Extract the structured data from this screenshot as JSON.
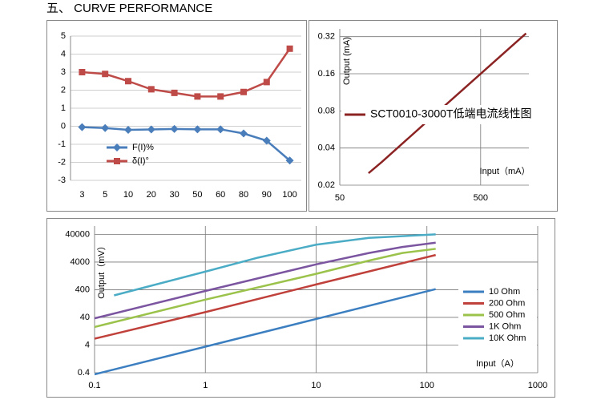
{
  "header": {
    "title": "五、 CURVE PERFORMANCE"
  },
  "chart_data": [
    {
      "type": "line",
      "categories": [
        "3",
        "5",
        "10",
        "20",
        "30",
        "50",
        "60",
        "80",
        "90",
        "100"
      ],
      "series": [
        {
          "name": "F(I)%",
          "color": "#4a7ebb",
          "marker": "diamond",
          "values": [
            -0.05,
            -0.1,
            -0.2,
            -0.18,
            -0.15,
            -0.17,
            -0.17,
            -0.4,
            -0.8,
            -1.9
          ]
        },
        {
          "name": "δ(I)°",
          "color": "#be4b48",
          "marker": "square",
          "values": [
            3,
            2.9,
            2.5,
            2.05,
            1.85,
            1.65,
            1.65,
            1.9,
            2.45,
            4.3
          ]
        }
      ],
      "ylim": [
        -3,
        5
      ],
      "yticks": [
        -3,
        -2,
        -1,
        0,
        1,
        2,
        3,
        4,
        5
      ],
      "grid": true,
      "legend": "lower left"
    },
    {
      "type": "line",
      "x": [
        80,
        100,
        200,
        500,
        1050
      ],
      "series": [
        {
          "name": "SCT0010-3000T低端电流线性图",
          "color": "#8b2323",
          "values": [
            0.025,
            0.031,
            0.063,
            0.16,
            0.34
          ]
        }
      ],
      "xscale": "log",
      "yscale": "log",
      "xlim": [
        50,
        1100
      ],
      "ylim": [
        0.02,
        0.37
      ],
      "xticks": [
        50,
        500
      ],
      "yticks": [
        0.02,
        0.04,
        0.08,
        0.16,
        0.32
      ],
      "y_label": "Output (mA)",
      "x_label": "Input（mA）",
      "grid": true,
      "legend": "center"
    },
    {
      "type": "line",
      "series": [
        {
          "name": "10 Ohm",
          "color": "#3c7fc1",
          "x": [
            0.1,
            1,
            10,
            120
          ],
          "values": [
            0.35,
            3.5,
            35,
            420
          ]
        },
        {
          "name": "200 Ohm",
          "color": "#c0413b",
          "x": [
            0.1,
            1,
            10,
            120
          ],
          "values": [
            6.8,
            62,
            620,
            7200
          ]
        },
        {
          "name": "500 Ohm",
          "color": "#9bc34b",
          "x": [
            0.1,
            1,
            10,
            30,
            60,
            120
          ],
          "values": [
            18,
            175,
            1500,
            4500,
            8500,
            12000
          ]
        },
        {
          "name": "1K  Ohm",
          "color": "#7b55a0",
          "x": [
            0.1,
            1,
            10,
            30,
            60,
            120
          ],
          "values": [
            37,
            360,
            3300,
            8500,
            14000,
            20000
          ]
        },
        {
          "name": "10K Ohm",
          "color": "#4bacc6",
          "x": [
            0.15,
            1,
            3,
            10,
            30,
            120
          ],
          "values": [
            250,
            1800,
            5800,
            17000,
            30000,
            40000
          ]
        }
      ],
      "xscale": "log",
      "yscale": "log",
      "xlim": [
        0.1,
        1000
      ],
      "ylim": [
        0.4,
        80000
      ],
      "xticks": [
        0.1,
        1,
        10,
        100,
        1000
      ],
      "yticks": [
        0.4,
        4,
        40,
        400,
        4000,
        40000
      ],
      "y_label": "Output（mV）",
      "x_label": "Input（A）",
      "grid": true,
      "legend": "right"
    }
  ]
}
